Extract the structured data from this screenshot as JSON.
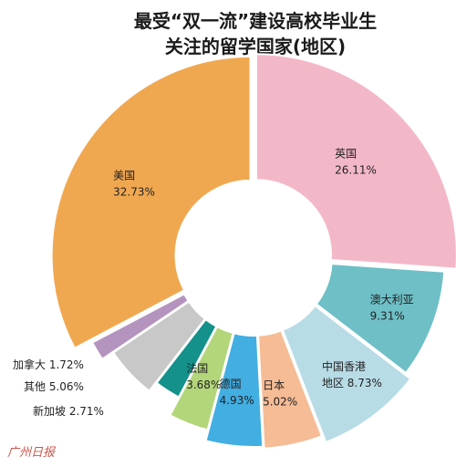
{
  "chart_data": {
    "type": "pie",
    "donut": true,
    "title_lines": [
      "最受“双一流”建设高校毕业生",
      "关注的留学国家(地区)"
    ],
    "slices": [
      {
        "label": "英国",
        "value_text": "26.11%",
        "value": 26.11,
        "color": "#f3b8c8"
      },
      {
        "label": "澳大利亚",
        "value_text": "9.31%",
        "value": 9.31,
        "color": "#6ebfc6"
      },
      {
        "label": "中国香港地区",
        "label_lines": [
          "中国香港",
          "地区 8.73%"
        ],
        "value_text": "8.73%",
        "value": 8.73,
        "color": "#b8dce6"
      },
      {
        "label": "日本",
        "value_text": "5.02%",
        "value": 5.02,
        "color": "#f6bc95"
      },
      {
        "label": "德国",
        "value_text": "4.93%",
        "value": 4.93,
        "color": "#42aee2"
      },
      {
        "label": "法国",
        "value_text": "3.68%",
        "value": 3.68,
        "color": "#b3d67a"
      },
      {
        "label": "新加坡",
        "value_text": "2.71%",
        "value": 2.71,
        "color": "#14918a",
        "outside": true
      },
      {
        "label": "其他",
        "value_text": "5.06%",
        "value": 5.06,
        "color": "#c8c8c8",
        "outside": true
      },
      {
        "label": "加拿大",
        "value_text": "1.72%",
        "value": 1.72,
        "color": "#b493bf",
        "outside": true
      },
      {
        "label": "美国",
        "value_text": "32.73%",
        "value": 32.73,
        "color": "#f0a850"
      }
    ]
  },
  "watermark": "广州日报"
}
